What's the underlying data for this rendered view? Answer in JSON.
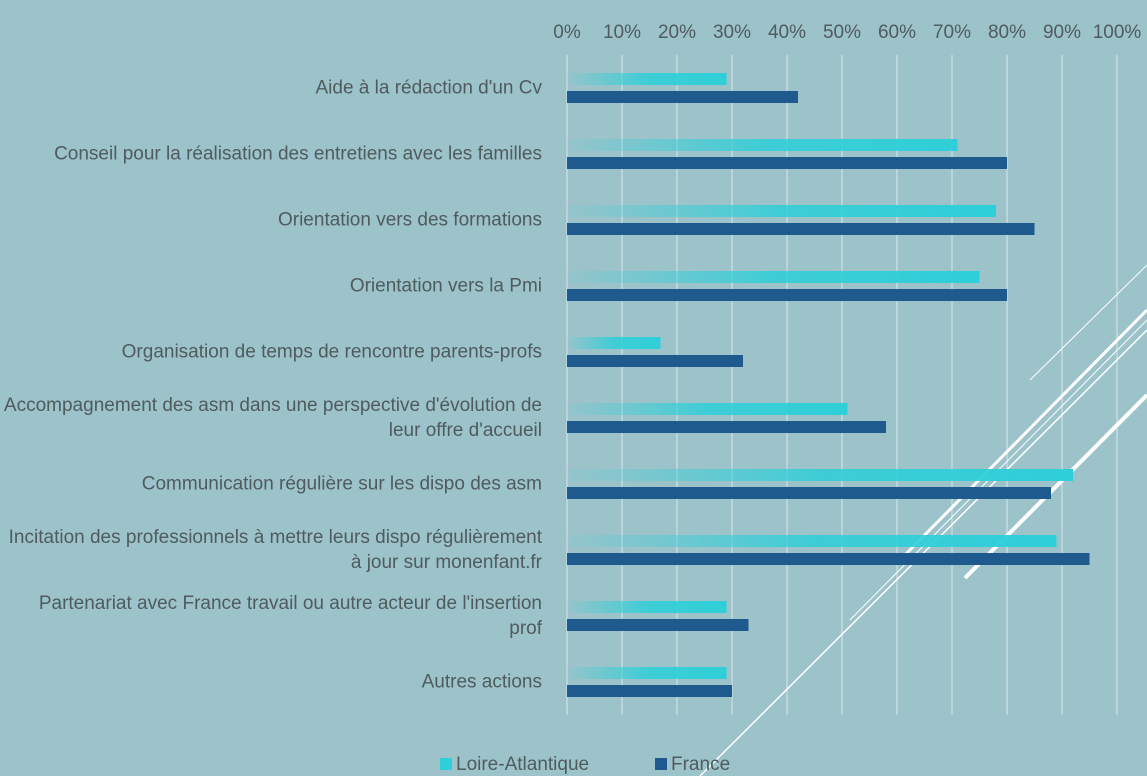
{
  "chart_data": {
    "type": "bar",
    "orientation": "horizontal",
    "categories": [
      "Aide à la rédaction d'un Cv",
      "Conseil pour la réalisation des entretiens avec les familles",
      "Orientation vers des formations",
      "Orientation vers la Pmi",
      "Organisation de temps de rencontre parents-profs",
      "Accompagnement des asm dans une perspective d'évolution de leur offre d'accueil",
      "Communication régulière sur les dispo des asm",
      "Incitation des professionnels à mettre leurs dispo régulièrement à jour sur monenfant.fr",
      "Partenariat avec France travail ou autre acteur de l'insertion prof",
      "Autres actions"
    ],
    "series": [
      {
        "name": "Loire-Atlantique",
        "color": "#2ecfd8",
        "values": [
          29,
          71,
          78,
          75,
          17,
          51,
          92,
          89,
          29,
          29
        ]
      },
      {
        "name": "France",
        "color": "#1f5a8e",
        "values": [
          42,
          80,
          85,
          80,
          32,
          58,
          88,
          95,
          33,
          30
        ]
      }
    ],
    "xlim": [
      0,
      100
    ],
    "xticks": [
      {
        "value": 0,
        "label": "0%"
      },
      {
        "value": 10,
        "label": "10%"
      },
      {
        "value": 20,
        "label": "20%"
      },
      {
        "value": 30,
        "label": "30%"
      },
      {
        "value": 40,
        "label": "40%"
      },
      {
        "value": 50,
        "label": "50%"
      },
      {
        "value": 60,
        "label": "60%"
      },
      {
        "value": 70,
        "label": "70%"
      },
      {
        "value": 80,
        "label": "80%"
      },
      {
        "value": 90,
        "label": "90%"
      },
      {
        "value": 100,
        "label": "100%"
      }
    ],
    "grid": true,
    "legend": "bottom"
  }
}
